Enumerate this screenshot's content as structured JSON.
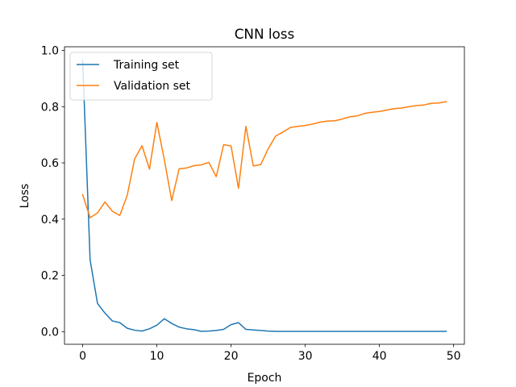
{
  "chart_data": {
    "type": "line",
    "title": "CNN loss",
    "xlabel": "Epoch",
    "ylabel": "Loss",
    "xlim": [
      -2.45,
      51.45
    ],
    "ylim": [
      -0.045,
      1.013
    ],
    "xticks": [
      0,
      10,
      20,
      30,
      40,
      50
    ],
    "xtick_labels": [
      "0",
      "10",
      "20",
      "30",
      "40",
      "50"
    ],
    "yticks": [
      0.0,
      0.2,
      0.4,
      0.6,
      0.8,
      1.0
    ],
    "ytick_labels": [
      "0.0",
      "0.2",
      "0.4",
      "0.6",
      "0.8",
      "1.0"
    ],
    "grid": false,
    "legend_position": "top-left",
    "x": [
      0,
      1,
      2,
      3,
      4,
      5,
      6,
      7,
      8,
      9,
      10,
      11,
      12,
      13,
      14,
      15,
      16,
      17,
      18,
      19,
      20,
      21,
      22,
      23,
      24,
      25,
      26,
      27,
      28,
      29,
      30,
      31,
      32,
      33,
      34,
      35,
      36,
      37,
      38,
      39,
      40,
      41,
      42,
      43,
      44,
      45,
      46,
      47,
      48,
      49
    ],
    "series": [
      {
        "name": "Training set",
        "color": "#1f77b4",
        "values": [
          0.965,
          0.255,
          0.1,
          0.066,
          0.038,
          0.032,
          0.012,
          0.005,
          0.002,
          0.01,
          0.023,
          0.046,
          0.029,
          0.016,
          0.01,
          0.007,
          0.001,
          0.002,
          0.004,
          0.008,
          0.025,
          0.032,
          0.008,
          0.006,
          0.004,
          0.002,
          0.001,
          0.001,
          0.001,
          0.001,
          0.001,
          0.001,
          0.001,
          0.001,
          0.001,
          0.001,
          0.001,
          0.001,
          0.001,
          0.001,
          0.001,
          0.001,
          0.001,
          0.001,
          0.001,
          0.001,
          0.001,
          0.001,
          0.001,
          0.001
        ]
      },
      {
        "name": "Validation set",
        "color": "#ff7f0e",
        "values": [
          0.487,
          0.405,
          0.422,
          0.461,
          0.428,
          0.413,
          0.484,
          0.614,
          0.661,
          0.578,
          0.744,
          0.612,
          0.466,
          0.579,
          0.582,
          0.59,
          0.593,
          0.602,
          0.551,
          0.665,
          0.66,
          0.51,
          0.73,
          0.589,
          0.594,
          0.65,
          0.695,
          0.71,
          0.726,
          0.73,
          0.733,
          0.738,
          0.745,
          0.749,
          0.75,
          0.756,
          0.764,
          0.767,
          0.776,
          0.78,
          0.783,
          0.788,
          0.793,
          0.795,
          0.8,
          0.804,
          0.806,
          0.812,
          0.813,
          0.818
        ]
      }
    ]
  }
}
